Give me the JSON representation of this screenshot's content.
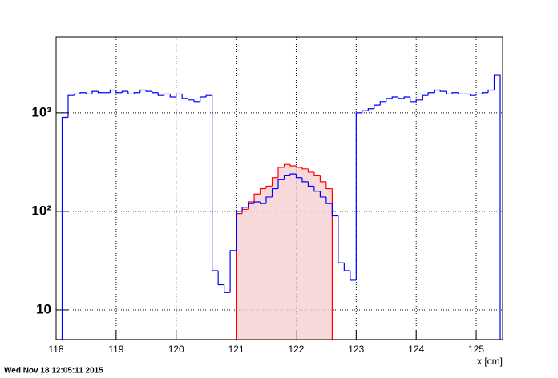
{
  "chart_data": {
    "type": "histogram",
    "x_label": "x [cm]",
    "footer": "Wed Nov 18 12:05:11 2015",
    "xlim": [
      118,
      125.44
    ],
    "ylim": [
      5,
      5900
    ],
    "log_y": true,
    "grid": true,
    "xticks": [
      118,
      119,
      120,
      121,
      122,
      123,
      124,
      125
    ],
    "yticks": [
      10,
      {
        "value": 100,
        "label": "10²"
      },
      {
        "value": 1000,
        "label": "10³"
      }
    ],
    "bins": [
      118.0,
      118.1,
      118.2,
      118.3,
      118.4,
      118.5,
      118.6,
      118.7,
      118.8,
      118.9,
      119.0,
      119.1,
      119.2,
      119.3,
      119.4,
      119.5,
      119.6,
      119.7,
      119.8,
      119.9,
      120.0,
      120.1,
      120.2,
      120.3,
      120.4,
      120.5,
      120.6,
      120.7,
      120.8,
      120.9,
      121.0,
      121.1,
      121.2,
      121.3,
      121.4,
      121.5,
      121.6,
      121.7,
      121.8,
      121.9,
      122.0,
      122.1,
      122.2,
      122.3,
      122.4,
      122.5,
      122.6,
      122.7,
      122.8,
      122.9,
      123.0,
      123.1,
      123.2,
      123.3,
      123.4,
      123.5,
      123.6,
      123.7,
      123.8,
      123.9,
      124.0,
      124.1,
      124.2,
      124.3,
      124.4,
      124.5,
      124.6,
      124.7,
      124.8,
      124.9,
      125.0,
      125.1,
      125.2,
      125.3,
      125.4
    ],
    "series": [
      {
        "color": "#ff0000",
        "fill": "#f6d0d0",
        "values": [
          0,
          0,
          0,
          0,
          0,
          0,
          0,
          0,
          0,
          0,
          0,
          0,
          0,
          0,
          0,
          0,
          0,
          0,
          0,
          0,
          0,
          0,
          0,
          0,
          0,
          0,
          0,
          0,
          0,
          0,
          95,
          105,
          125,
          150,
          170,
          180,
          220,
          280,
          300,
          290,
          280,
          270,
          250,
          230,
          200,
          170,
          0,
          0,
          0,
          0,
          0,
          0,
          0,
          0,
          0,
          0,
          0,
          0,
          0,
          0,
          0,
          0,
          0,
          0,
          0,
          0,
          0,
          0,
          0,
          0,
          0,
          0,
          0,
          0
        ]
      },
      {
        "color": "#0000ff",
        "values": [
          0,
          900,
          1500,
          1550,
          1600,
          1550,
          1650,
          1600,
          1600,
          1700,
          1600,
          1650,
          1550,
          1600,
          1700,
          1650,
          1600,
          1500,
          1550,
          1450,
          1550,
          1400,
          1350,
          1300,
          1450,
          1500,
          25,
          18,
          15,
          40,
          100,
          110,
          120,
          125,
          120,
          140,
          170,
          210,
          230,
          240,
          220,
          200,
          180,
          160,
          140,
          120,
          90,
          30,
          25,
          20,
          1000,
          1050,
          1100,
          1200,
          1300,
          1400,
          1450,
          1400,
          1450,
          1300,
          1350,
          1500,
          1600,
          1700,
          1650,
          1550,
          1600,
          1550,
          1550,
          1500,
          1550,
          1600,
          1700,
          2400
        ]
      }
    ]
  }
}
